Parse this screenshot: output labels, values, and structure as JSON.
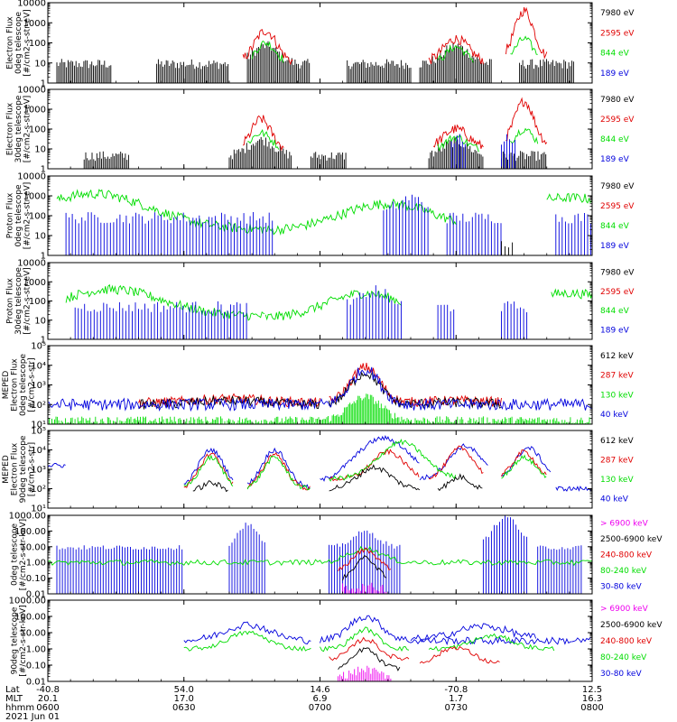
{
  "colors": {
    "black": "#000000",
    "red": "#e00000",
    "green": "#00dd00",
    "blue": "#0000dd",
    "magenta": "#ee00ee"
  },
  "chart_data": [
    {
      "type": "line",
      "ylabel": [
        "Electron Flux",
        "0deg telescope",
        "[#/cm2-s-str-eV]"
      ],
      "yscale": "log",
      "ylim": [
        1,
        10000
      ],
      "ytick_labels": [
        "10000",
        "1000",
        "100",
        "10",
        "1"
      ],
      "legend": [
        {
          "label": "7980 eV",
          "color": "black"
        },
        {
          "label": "2595 eV",
          "color": "red"
        },
        {
          "label": "844 eV",
          "color": "green"
        },
        {
          "label": "189 eV",
          "color": "blue"
        }
      ]
    },
    {
      "type": "line",
      "ylabel": [
        "Electron Flux",
        "30deg telescope",
        "[#/cm2-s-str-eV]"
      ],
      "yscale": "log",
      "ylim": [
        1,
        10000
      ],
      "ytick_labels": [
        "10000",
        "1000",
        "100",
        "10",
        "1"
      ],
      "legend": [
        {
          "label": "7980 eV",
          "color": "black"
        },
        {
          "label": "2595 eV",
          "color": "red"
        },
        {
          "label": "844 eV",
          "color": "green"
        },
        {
          "label": "189 eV",
          "color": "blue"
        }
      ]
    },
    {
      "type": "line",
      "ylabel": [
        "Proton Flux",
        "0deg telescope",
        "[#/cm2-s-str-eV]"
      ],
      "yscale": "log",
      "ylim": [
        1,
        10000
      ],
      "ytick_labels": [
        "10000",
        "1000",
        "100",
        "10",
        "1"
      ],
      "legend": [
        {
          "label": "7980 eV",
          "color": "black"
        },
        {
          "label": "2595 eV",
          "color": "red"
        },
        {
          "label": "844 eV",
          "color": "green"
        },
        {
          "label": "189 eV",
          "color": "blue"
        }
      ]
    },
    {
      "type": "line",
      "ylabel": [
        "Proton Flux",
        "30deg telescope",
        "[#/cm2-s-str-eV]"
      ],
      "yscale": "log",
      "ylim": [
        1,
        10000
      ],
      "ytick_labels": [
        "10000",
        "1000",
        "100",
        "10",
        "1"
      ],
      "legend": [
        {
          "label": "7980 eV",
          "color": "black"
        },
        {
          "label": "2595 eV",
          "color": "red"
        },
        {
          "label": "844 eV",
          "color": "green"
        },
        {
          "label": "189 eV",
          "color": "blue"
        }
      ]
    },
    {
      "type": "line",
      "ylabel": [
        "MEPED",
        "Electron Flux",
        "0deg telescope",
        "[#/cm2-s-str]"
      ],
      "yscale": "log",
      "ylim": [
        10,
        100000
      ],
      "ytick_labels": [
        "10⁵",
        "10⁴",
        "10³",
        "10²",
        "10¹"
      ],
      "legend": [
        {
          "label": "612 keV",
          "color": "black"
        },
        {
          "label": "287 keV",
          "color": "red"
        },
        {
          "label": "130 keV",
          "color": "green"
        },
        {
          "label": "40 keV",
          "color": "blue"
        }
      ]
    },
    {
      "type": "line",
      "ylabel": [
        "MEPED",
        "Electron Flux",
        "90deg telescope",
        "[#/cm2-s-str]"
      ],
      "yscale": "log",
      "ylim": [
        10,
        100000
      ],
      "ytick_labels": [
        "10⁵",
        "10⁴",
        "10³",
        "10²",
        "10¹"
      ],
      "legend": [
        {
          "label": "612 keV",
          "color": "black"
        },
        {
          "label": "287 keV",
          "color": "red"
        },
        {
          "label": "130 keV",
          "color": "green"
        },
        {
          "label": "40 keV",
          "color": "blue"
        }
      ]
    },
    {
      "type": "line",
      "ylabel": [
        "0deg telescope",
        "[#/cm2-s-str-keV]"
      ],
      "yscale": "log",
      "ylim": [
        0.01,
        1000
      ],
      "ytick_labels": [
        "1000.00",
        "100.00",
        "10.00",
        "1.00",
        "0.10",
        "0.01"
      ],
      "legend": [
        {
          "label": "> 6900 keV",
          "color": "magenta"
        },
        {
          "label": "2500-6900 keV",
          "color": "black"
        },
        {
          "label": "240-800 keV",
          "color": "red"
        },
        {
          "label": "80-240 keV",
          "color": "green"
        },
        {
          "label": "30-80 keV",
          "color": "blue"
        }
      ]
    },
    {
      "type": "line",
      "ylabel": [
        "90deg telescope",
        "[#/cm2-s-str-keV]"
      ],
      "yscale": "log",
      "ylim": [
        0.01,
        1000
      ],
      "ytick_labels": [
        "1000.00",
        "100.00",
        "10.00",
        "1.00",
        "0.10",
        "0.01"
      ],
      "legend": [
        {
          "label": "> 6900 keV",
          "color": "magenta"
        },
        {
          "label": "2500-6900 keV",
          "color": "black"
        },
        {
          "label": "240-800 keV",
          "color": "red"
        },
        {
          "label": "80-240 keV",
          "color": "green"
        },
        {
          "label": "30-80 keV",
          "color": "blue"
        }
      ]
    }
  ],
  "x_axis": {
    "row_labels": [
      "Lat",
      "MLT",
      "hhmm"
    ],
    "date": "2021 Jun 01",
    "ticks": [
      {
        "lat": "-40.8",
        "mlt": "20.1",
        "hhmm": "0600"
      },
      {
        "lat": "54.0",
        "mlt": "17.0",
        "hhmm": "0630"
      },
      {
        "lat": "14.6",
        "mlt": "6.9",
        "hhmm": "0700"
      },
      {
        "lat": "-70.8",
        "mlt": "1.7",
        "hhmm": "0730"
      },
      {
        "lat": "12.5",
        "mlt": "16.3",
        "hhmm": "0800"
      }
    ],
    "minutes_range": [
      0,
      120
    ],
    "tick_minutes": [
      0,
      30,
      60,
      90,
      120
    ]
  }
}
